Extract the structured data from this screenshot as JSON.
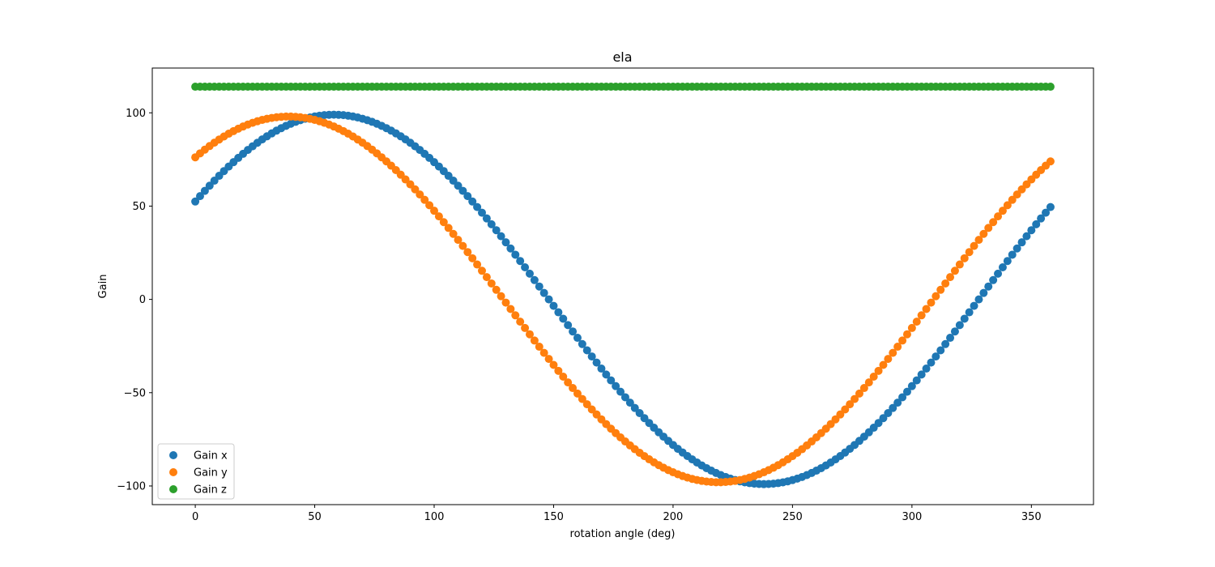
{
  "chart_data": {
    "type": "scatter",
    "title": "ela",
    "xlabel": "rotation angle (deg)",
    "ylabel": "Gain",
    "xlim": [
      -18,
      376
    ],
    "ylim": [
      -110,
      124
    ],
    "xticks": [
      0,
      50,
      100,
      150,
      200,
      250,
      300,
      350
    ],
    "yticks": [
      -100,
      -50,
      0,
      50,
      100
    ],
    "ytick_labels": [
      "−100",
      "−50",
      "0",
      "50",
      "100"
    ],
    "grid": false,
    "legend_position": "lower-left",
    "x": {
      "start": 0,
      "stop": 358,
      "step": 2
    },
    "series": [
      {
        "name": "Gain x",
        "color": "#1f77b4",
        "amplitude": 99,
        "phase_deg": 58,
        "offset": 0
      },
      {
        "name": "Gain y",
        "color": "#ff7f0e",
        "amplitude": 98,
        "phase_deg": 39,
        "offset": 0
      },
      {
        "name": "Gain z",
        "color": "#2ca02c",
        "amplitude": 0,
        "phase_deg": 0,
        "offset": 114
      }
    ]
  }
}
